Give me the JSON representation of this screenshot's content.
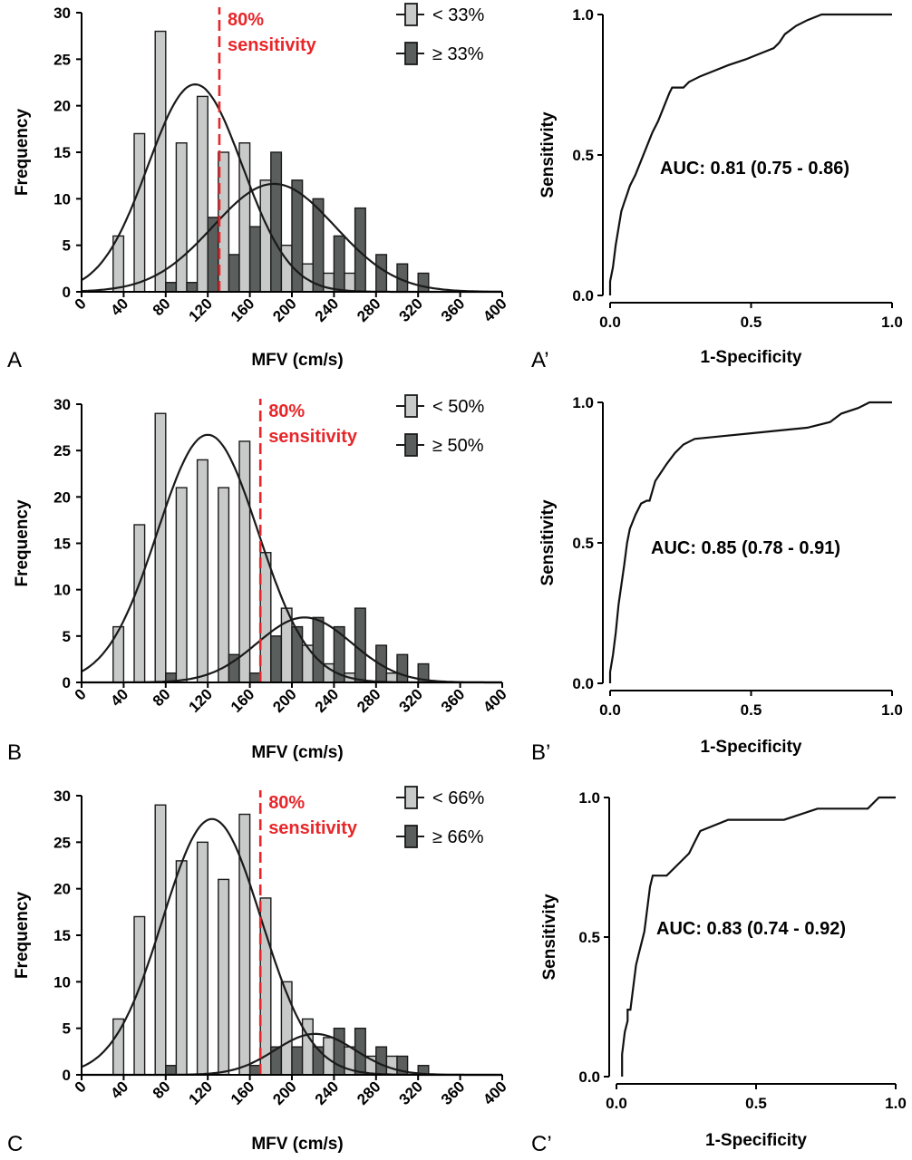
{
  "chart_data": [
    {
      "type": "bar",
      "panel_label": "A",
      "xlabel": "MFV (cm/s)",
      "ylabel": "Frequency",
      "xlim": [
        0,
        400
      ],
      "ylim": [
        0,
        30
      ],
      "xticks": [
        0,
        40,
        80,
        120,
        160,
        200,
        240,
        280,
        320,
        360,
        400
      ],
      "yticks": [
        0,
        5,
        10,
        15,
        20,
        25,
        30
      ],
      "bin_width": 20,
      "bin_centers": [
        40,
        60,
        80,
        100,
        120,
        140,
        160,
        180,
        200,
        220,
        240,
        260,
        280,
        300,
        320
      ],
      "series": [
        {
          "name": "< 33%",
          "color": "#c8cac9",
          "values": [
            6,
            17,
            28,
            16,
            21,
            15,
            16,
            12,
            5,
            3,
            2,
            2,
            0,
            0,
            0
          ],
          "fit": {
            "mean": 108,
            "sd": 45,
            "peak": 22.3
          }
        },
        {
          "name": "≥ 33%",
          "color": "#5a5e5d",
          "values": [
            0,
            0,
            1,
            1,
            8,
            4,
            7,
            15,
            12,
            10,
            6,
            9,
            4,
            3,
            2
          ],
          "fit": {
            "mean": 183,
            "sd": 58,
            "peak": 11.6
          }
        }
      ],
      "threshold": {
        "value": 131,
        "label_line1": "80%",
        "label_line2": "sensitivity",
        "color": "#e8262a"
      }
    },
    {
      "type": "line",
      "panel_label": "A’",
      "xlabel": "1-Specificity",
      "ylabel": "Sensitivity",
      "xlim": [
        0,
        1
      ],
      "ylim": [
        0,
        1
      ],
      "xticks": [
        "0.0",
        "0.5",
        "1.0"
      ],
      "yticks": [
        "0.0",
        "0.5",
        "1.0"
      ],
      "annotation": "AUC: 0.81 (0.75 - 0.86)",
      "points": [
        [
          0,
          0
        ],
        [
          0,
          0.05
        ],
        [
          0.01,
          0.1
        ],
        [
          0.02,
          0.18
        ],
        [
          0.03,
          0.24
        ],
        [
          0.04,
          0.3
        ],
        [
          0.05,
          0.33
        ],
        [
          0.06,
          0.36
        ],
        [
          0.07,
          0.39
        ],
        [
          0.09,
          0.43
        ],
        [
          0.11,
          0.48
        ],
        [
          0.13,
          0.53
        ],
        [
          0.15,
          0.58
        ],
        [
          0.17,
          0.62
        ],
        [
          0.19,
          0.67
        ],
        [
          0.21,
          0.72
        ],
        [
          0.22,
          0.74
        ],
        [
          0.26,
          0.74
        ],
        [
          0.28,
          0.76
        ],
        [
          0.32,
          0.78
        ],
        [
          0.37,
          0.8
        ],
        [
          0.42,
          0.82
        ],
        [
          0.48,
          0.84
        ],
        [
          0.53,
          0.86
        ],
        [
          0.58,
          0.88
        ],
        [
          0.6,
          0.9
        ],
        [
          0.62,
          0.93
        ],
        [
          0.66,
          0.96
        ],
        [
          0.7,
          0.98
        ],
        [
          0.75,
          1.0
        ],
        [
          1.0,
          1.0
        ]
      ]
    },
    {
      "type": "bar",
      "panel_label": "B",
      "xlabel": "MFV (cm/s)",
      "ylabel": "Frequency",
      "xlim": [
        0,
        400
      ],
      "ylim": [
        0,
        30
      ],
      "xticks": [
        0,
        40,
        80,
        120,
        160,
        200,
        240,
        280,
        320,
        360,
        400
      ],
      "yticks": [
        0,
        5,
        10,
        15,
        20,
        25,
        30
      ],
      "bin_width": 20,
      "bin_centers": [
        40,
        60,
        80,
        100,
        120,
        140,
        160,
        180,
        200,
        220,
        240,
        260,
        280,
        300,
        320
      ],
      "series": [
        {
          "name": "< 50%",
          "color": "#c8cac9",
          "values": [
            6,
            17,
            29,
            21,
            24,
            21,
            26,
            14,
            8,
            4,
            2,
            1,
            0,
            1,
            0
          ],
          "fit": {
            "mean": 120,
            "sd": 48,
            "peak": 26.7
          }
        },
        {
          "name": "≥ 50%",
          "color": "#5a5e5d",
          "values": [
            0,
            0,
            1,
            0,
            0,
            3,
            1,
            5,
            6,
            7,
            6,
            8,
            4,
            3,
            2
          ],
          "fit": {
            "mean": 212,
            "sd": 45,
            "peak": 7.0
          }
        }
      ],
      "threshold": {
        "value": 170,
        "label_line1": "80%",
        "label_line2": "sensitivity",
        "color": "#e8262a"
      }
    },
    {
      "type": "line",
      "panel_label": "B’",
      "xlabel": "1-Specificity",
      "ylabel": "Sensitivity",
      "xlim": [
        0,
        1
      ],
      "ylim": [
        0,
        1
      ],
      "xticks": [
        "0.0",
        "0.5",
        "1.0"
      ],
      "yticks": [
        "0.0",
        "0.5",
        "1.0"
      ],
      "annotation": "AUC: 0.85 (0.78 - 0.91)",
      "points": [
        [
          0,
          0
        ],
        [
          0,
          0.04
        ],
        [
          0.01,
          0.1
        ],
        [
          0.02,
          0.18
        ],
        [
          0.03,
          0.28
        ],
        [
          0.04,
          0.35
        ],
        [
          0.05,
          0.42
        ],
        [
          0.06,
          0.5
        ],
        [
          0.07,
          0.55
        ],
        [
          0.09,
          0.6
        ],
        [
          0.11,
          0.64
        ],
        [
          0.13,
          0.65
        ],
        [
          0.14,
          0.65
        ],
        [
          0.16,
          0.72
        ],
        [
          0.18,
          0.75
        ],
        [
          0.2,
          0.78
        ],
        [
          0.23,
          0.82
        ],
        [
          0.26,
          0.85
        ],
        [
          0.3,
          0.87
        ],
        [
          0.4,
          0.88
        ],
        [
          0.5,
          0.89
        ],
        [
          0.6,
          0.9
        ],
        [
          0.7,
          0.91
        ],
        [
          0.78,
          0.93
        ],
        [
          0.82,
          0.96
        ],
        [
          0.88,
          0.98
        ],
        [
          0.92,
          1.0
        ],
        [
          1.0,
          1.0
        ]
      ]
    },
    {
      "type": "bar",
      "panel_label": "C",
      "xlabel": "MFV (cm/s)",
      "ylabel": "Frequency",
      "xlim": [
        0,
        400
      ],
      "ylim": [
        0,
        30
      ],
      "xticks": [
        0,
        40,
        80,
        120,
        160,
        200,
        240,
        280,
        320,
        360,
        400
      ],
      "yticks": [
        0,
        5,
        10,
        15,
        20,
        25,
        30
      ],
      "bin_width": 20,
      "bin_centers": [
        40,
        60,
        80,
        100,
        120,
        140,
        160,
        180,
        200,
        220,
        240,
        260,
        280,
        300,
        320
      ],
      "series": [
        {
          "name": "< 66%",
          "color": "#c8cac9",
          "values": [
            6,
            17,
            29,
            23,
            25,
            21,
            28,
            19,
            10,
            6,
            4,
            3,
            2,
            2,
            0
          ],
          "fit": {
            "mean": 124,
            "sd": 47,
            "peak": 27.5
          }
        },
        {
          "name": "≥ 66%",
          "color": "#5a5e5d",
          "values": [
            0,
            0,
            1,
            0,
            0,
            0,
            1,
            3,
            3,
            3,
            5,
            5,
            3,
            2,
            1
          ],
          "fit": {
            "mean": 222,
            "sd": 38,
            "peak": 4.4
          }
        }
      ],
      "threshold": {
        "value": 170,
        "label_line1": "80%",
        "label_line2": "sensitivity",
        "color": "#e8262a"
      }
    },
    {
      "type": "line",
      "panel_label": "C’",
      "xlabel": "1-Specificity",
      "ylabel": "Sensitivity",
      "xlim": [
        0,
        1
      ],
      "ylim": [
        0,
        1
      ],
      "xticks": [
        "0.0",
        "0.5",
        "1.0"
      ],
      "yticks": [
        "0.0",
        "0.5",
        "1.0"
      ],
      "annotation": "AUC: 0.83 (0.74 - 0.92)",
      "points": [
        [
          0.02,
          0
        ],
        [
          0.02,
          0.08
        ],
        [
          0.03,
          0.16
        ],
        [
          0.04,
          0.2
        ],
        [
          0.04,
          0.24
        ],
        [
          0.05,
          0.24
        ],
        [
          0.06,
          0.32
        ],
        [
          0.07,
          0.4
        ],
        [
          0.08,
          0.44
        ],
        [
          0.09,
          0.48
        ],
        [
          0.1,
          0.52
        ],
        [
          0.11,
          0.6
        ],
        [
          0.12,
          0.68
        ],
        [
          0.13,
          0.72
        ],
        [
          0.18,
          0.72
        ],
        [
          0.22,
          0.76
        ],
        [
          0.26,
          0.8
        ],
        [
          0.28,
          0.84
        ],
        [
          0.3,
          0.88
        ],
        [
          0.4,
          0.92
        ],
        [
          0.5,
          0.92
        ],
        [
          0.6,
          0.92
        ],
        [
          0.72,
          0.96
        ],
        [
          0.9,
          0.96
        ],
        [
          0.94,
          1.0
        ],
        [
          1.0,
          1.0
        ]
      ]
    }
  ]
}
